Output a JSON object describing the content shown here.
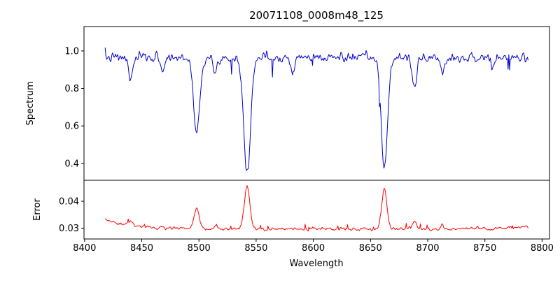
{
  "chart_data": {
    "type": "line",
    "title": "20071108_0008m48_125",
    "xlabel": "Wavelength",
    "xlim": [
      8399.5,
      8806.5
    ],
    "x_ticks": [
      8400,
      8450,
      8500,
      8550,
      8600,
      8650,
      8700,
      8750,
      8800
    ],
    "x_data_range": [
      8418,
      8788
    ],
    "sample_step": 0.65,
    "background": "#ffffff",
    "axis_color": "#000000",
    "panels": [
      {
        "name": "spectrum",
        "ylabel": "Spectrum",
        "line_color": "#0000cc",
        "ylim": [
          0.31,
          1.13
        ],
        "y_ticks": [
          0.4,
          0.6,
          0.8,
          1.0
        ],
        "y_tick_decimals": 1,
        "continuum": 0.965,
        "noise_sigma": 0.019,
        "spike_probability": 0.015,
        "spike_max_depth": 0.09,
        "absorption_lines": [
          {
            "center": 8440.2,
            "depth": 0.12,
            "sigma": 1.8
          },
          {
            "center": 8468.5,
            "depth": 0.07,
            "sigma": 1.6
          },
          {
            "center": 8498.0,
            "depth": 0.41,
            "sigma": 2.6
          },
          {
            "center": 8514.2,
            "depth": 0.09,
            "sigma": 1.8
          },
          {
            "center": 8542.1,
            "depth": 0.6,
            "sigma": 3.0
          },
          {
            "center": 8582.0,
            "depth": 0.07,
            "sigma": 1.6
          },
          {
            "center": 8662.1,
            "depth": 0.59,
            "sigma": 2.8
          },
          {
            "center": 8688.6,
            "depth": 0.18,
            "sigma": 1.8
          },
          {
            "center": 8713.0,
            "depth": 0.08,
            "sigma": 1.6
          },
          {
            "center": 8757.0,
            "depth": 0.07,
            "sigma": 1.5
          }
        ]
      },
      {
        "name": "error",
        "ylabel": "Error",
        "line_color": "#ff0000",
        "ylim": [
          0.026,
          0.0478
        ],
        "y_ticks": [
          0.03,
          0.04
        ],
        "y_tick_decimals": 2,
        "baseline": 0.0297,
        "left_decay": {
          "amplitude": 0.0035,
          "scale": 26
        },
        "right_rise": {
          "amplitude": 0.0012,
          "scale": 16
        },
        "noise_sigma": 0.00045,
        "spike_probability": 0.04,
        "spike_max_height": 0.0018,
        "peaks": [
          {
            "center": 8440.2,
            "height": 0.0018,
            "sigma": 1.8
          },
          {
            "center": 8498.0,
            "height": 0.0075,
            "sigma": 2.2
          },
          {
            "center": 8514.2,
            "height": 0.0012,
            "sigma": 1.6
          },
          {
            "center": 8542.1,
            "height": 0.0158,
            "sigma": 2.4
          },
          {
            "center": 8662.1,
            "height": 0.0152,
            "sigma": 2.2
          },
          {
            "center": 8688.6,
            "height": 0.003,
            "sigma": 1.6
          },
          {
            "center": 8713.0,
            "height": 0.0012,
            "sigma": 1.5
          }
        ]
      }
    ]
  }
}
